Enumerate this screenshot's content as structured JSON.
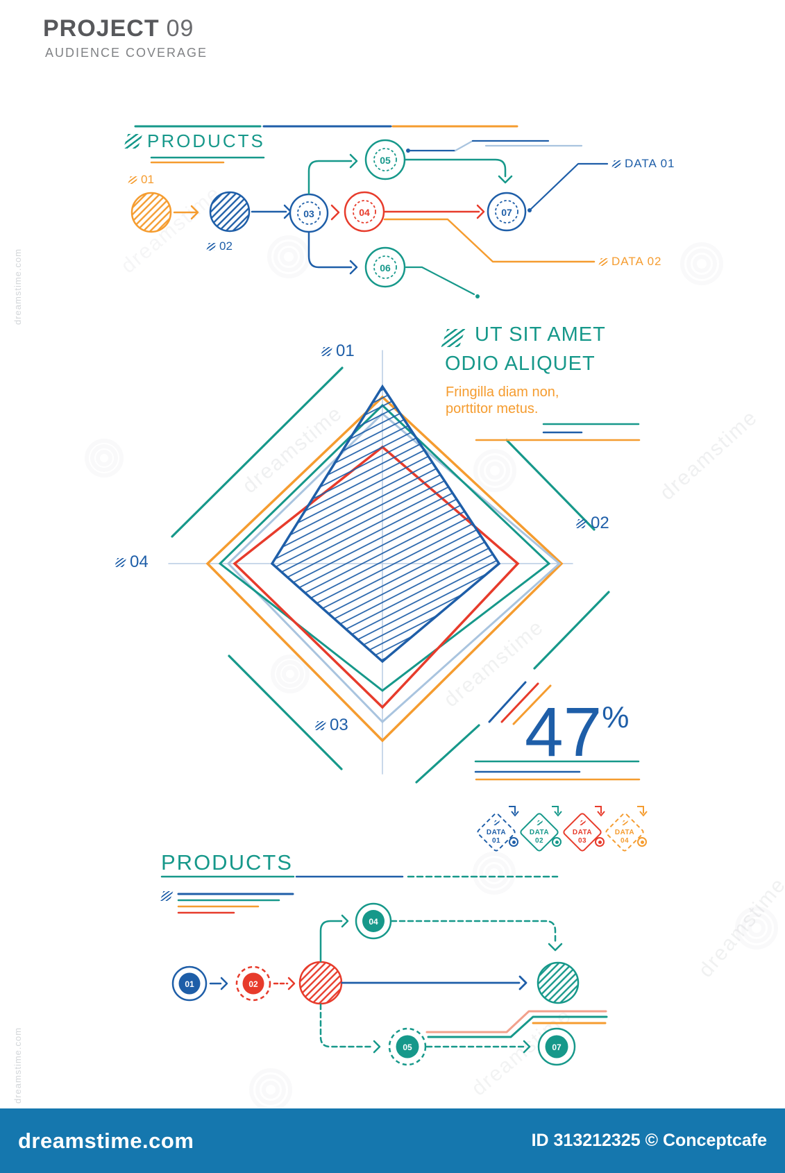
{
  "colors": {
    "teal": "#16988A",
    "blue": "#1E5EA8",
    "orange": "#F59C2F",
    "red": "#E73B2B",
    "light_blue": "#A9C4DF",
    "salmon": "#F2A18C",
    "axis": "#B7CBE3",
    "title_gray": "#57585B",
    "subtitle_gray": "#808285",
    "footer_bar": "#1577AE"
  },
  "header": {
    "title": "PROJECT",
    "number": "09",
    "subtitle": "AUDIENCE COVERAGE"
  },
  "top_flow": {
    "title": "PRODUCTS",
    "step1_label": "01",
    "step2_label": "02",
    "node_03": "03",
    "node_04": "04",
    "node_05": "05",
    "node_06": "06",
    "node_07": "07",
    "data_label_1": "DATA 01",
    "data_label_2": "DATA 02"
  },
  "radar": {
    "axis_top": "01",
    "axis_right": "02",
    "axis_bottom": "03",
    "axis_left": "04",
    "heading_line1": "UT SIT AMET",
    "heading_line2": "ODIO ALIQUET",
    "sub_line1": "Fringilla diam non,",
    "sub_line2": "porttitor metus.",
    "stat_value": "47",
    "stat_unit": "%",
    "legend": [
      {
        "label": "DATA",
        "num": "01",
        "color": "#1E5EA8",
        "style": "dashed"
      },
      {
        "label": "DATA",
        "num": "02",
        "color": "#16988A",
        "style": "solid"
      },
      {
        "label": "DATA",
        "num": "03",
        "color": "#E73B2B",
        "style": "solid"
      },
      {
        "label": "DATA",
        "num": "04",
        "color": "#F59C2F",
        "style": "dashed"
      }
    ]
  },
  "chart_data": {
    "type": "radar",
    "axes": [
      "01",
      "02",
      "03",
      "04"
    ],
    "value_range": [
      0,
      1
    ],
    "center": [
      551,
      812
    ],
    "radius": 300,
    "series": [
      {
        "name": "orange",
        "color": "#F59C2F",
        "values": [
          0.8,
          0.86,
          0.85,
          0.84
        ],
        "fill": "none",
        "stroke_width": 3.5
      },
      {
        "name": "light-blue",
        "color": "#A9C4DF",
        "values": [
          0.72,
          0.85,
          0.76,
          0.74
        ],
        "fill": "none",
        "stroke_width": 3
      },
      {
        "name": "teal",
        "color": "#16988A",
        "values": [
          0.76,
          0.8,
          0.61,
          0.78
        ],
        "fill": "none",
        "stroke_width": 3
      },
      {
        "name": "red",
        "color": "#E73B2B",
        "values": [
          0.56,
          0.65,
          0.69,
          0.71
        ],
        "fill": "none",
        "stroke_width": 3.5
      },
      {
        "name": "blue",
        "color": "#1E5EA8",
        "values": [
          0.85,
          0.56,
          0.47,
          0.53
        ],
        "fill": "hatch",
        "stroke_width": 3.5
      }
    ],
    "title": "UT SIT AMET ODIO ALIQUET",
    "stat": "47%"
  },
  "bottom_flow": {
    "title": "PRODUCTS",
    "node_01": "01",
    "node_02": "02",
    "node_04": "04",
    "node_05": "05",
    "node_07": "07"
  },
  "footer": {
    "logo": "dreamstime.com",
    "credit": "ID 313212325 © Conceptcafe"
  },
  "watermark": {
    "text": "dreamstime",
    "corner_text": "dreamstime.com"
  }
}
